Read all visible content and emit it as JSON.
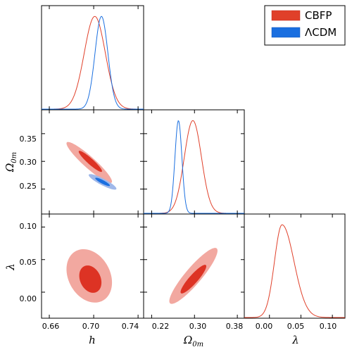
{
  "chart_data": {
    "type": "triangle-corner",
    "colors": {
      "cbfp_line": "#e0402a",
      "cbfp_inner": "#dd3324",
      "cbfp_outer": "#f2a8a0",
      "lcdm_line": "#1a6fe0",
      "lcdm_inner": "#1a6fe0",
      "lcdm_outer": "#9fb8ea"
    },
    "legend": {
      "position": "top-right",
      "entries": [
        {
          "label": "CBFP",
          "color": "#e0402a"
        },
        {
          "label": "ΛCDM",
          "color": "#1a6fe0"
        }
      ]
    },
    "axes": {
      "h": {
        "label": "h",
        "range": [
          0.653,
          0.745
        ],
        "ticks": [
          0.66,
          0.7,
          0.74
        ],
        "tick_labels": [
          "0.66",
          "0.70",
          "0.74"
        ]
      },
      "omega": {
        "label_main": "Ω",
        "label_sub": "0m",
        "range": [
          0.205,
          0.393
        ],
        "ticks": [
          0.25,
          0.3,
          0.35
        ],
        "tick_labels": [
          "0.25",
          "0.30",
          "0.35"
        ],
        "xticks": [
          0.22,
          0.3,
          0.38
        ],
        "xtick_labels": [
          "0.22",
          "0.30",
          "0.38"
        ]
      },
      "lambda": {
        "label": "λ",
        "range": [
          -0.04,
          0.12
        ],
        "ticks": [
          0.0,
          0.05,
          0.1
        ],
        "tick_labels": [
          "0.00",
          "0.05",
          "0.10"
        ],
        "xticks": [
          0.0,
          0.05,
          0.1
        ],
        "xtick_labels": [
          "0.00",
          "0.05",
          "0.10"
        ]
      }
    },
    "marginals": {
      "h": [
        {
          "series": "CBFP",
          "mean": 0.701,
          "sigma": 0.0095
        },
        {
          "series": "ΛCDM",
          "mean": 0.707,
          "sigma": 0.0058
        }
      ],
      "omega": [
        {
          "series": "CBFP",
          "mean": 0.297,
          "sigma": 0.016
        },
        {
          "series": "ΛCDM",
          "mean": 0.27,
          "sigma": 0.0065
        }
      ],
      "lambda": [
        {
          "series": "CBFP",
          "mode": 0.02,
          "sigma_left": 0.012,
          "sigma_right": 0.019
        }
      ]
    },
    "contours": {
      "omega_vs_h": [
        {
          "series": "CBFP",
          "level": "outer",
          "center": [
            0.696,
            0.298
          ],
          "sx": 0.0205,
          "sy": 0.037,
          "rho": -0.93
        },
        {
          "series": "CBFP",
          "level": "inner",
          "center": [
            0.697,
            0.3
          ],
          "sx": 0.0105,
          "sy": 0.019,
          "rho": -0.93
        },
        {
          "series": "ΛCDM",
          "level": "outer",
          "center": [
            0.708,
            0.263
          ],
          "sx": 0.0125,
          "sy": 0.014,
          "rho": -0.88
        },
        {
          "series": "ΛCDM",
          "level": "inner",
          "center": [
            0.708,
            0.263
          ],
          "sx": 0.0066,
          "sy": 0.0075,
          "rho": -0.88
        }
      ],
      "lambda_vs_h": [
        {
          "series": "CBFP",
          "level": "outer",
          "center": [
            0.696,
            0.025
          ],
          "sx": 0.0205,
          "sy": 0.041,
          "rho": -0.25
        },
        {
          "series": "CBFP",
          "level": "inner",
          "center": [
            0.697,
            0.02
          ],
          "sx": 0.01,
          "sy": 0.021,
          "rho": -0.25
        }
      ],
      "lambda_vs_omega": [
        {
          "series": "CBFP",
          "level": "outer",
          "center": [
            0.298,
            0.025
          ],
          "sx": 0.045,
          "sy": 0.043,
          "rho": 0.9
        },
        {
          "series": "CBFP",
          "level": "inner",
          "center": [
            0.298,
            0.02
          ],
          "sx": 0.024,
          "sy": 0.022,
          "rho": 0.9
        }
      ]
    }
  }
}
